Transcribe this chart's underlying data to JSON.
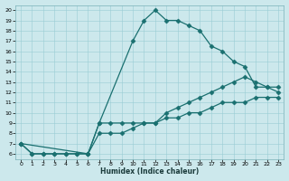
{
  "xlabel": "Humidex (Indice chaleur)",
  "bg_color": "#cce8ec",
  "grid_color": "#99cdd4",
  "line_color": "#1a7070",
  "xlim": [
    -0.5,
    23.5
  ],
  "ylim": [
    5.5,
    20.5
  ],
  "xticks": [
    0,
    1,
    2,
    3,
    4,
    5,
    6,
    7,
    8,
    9,
    10,
    11,
    12,
    13,
    14,
    15,
    16,
    17,
    18,
    19,
    20,
    21,
    22,
    23
  ],
  "yticks": [
    6,
    7,
    8,
    9,
    10,
    11,
    12,
    13,
    14,
    15,
    16,
    17,
    18,
    19,
    20
  ],
  "line1_x": [
    0,
    1,
    2,
    3,
    4,
    5,
    6,
    7,
    10,
    11,
    12,
    13,
    14,
    15,
    16,
    17,
    18,
    19,
    20,
    21,
    22,
    23
  ],
  "line1_y": [
    7,
    6,
    6,
    6,
    6,
    6,
    6,
    9,
    17,
    19,
    20,
    19,
    19,
    18.5,
    18,
    16.5,
    16,
    15,
    14.5,
    12.5,
    12.5,
    12.5
  ],
  "line2_x": [
    0,
    6,
    7,
    8,
    9,
    10,
    11,
    12,
    13,
    14,
    15,
    16,
    17,
    18,
    19,
    20,
    21,
    22,
    23
  ],
  "line2_y": [
    7,
    6,
    9,
    9,
    9,
    9,
    9,
    9,
    10,
    10.5,
    11,
    11.5,
    12,
    12.5,
    13,
    13.5,
    13,
    12.5,
    12
  ],
  "line3_x": [
    0,
    1,
    2,
    3,
    4,
    5,
    6,
    7,
    8,
    9,
    10,
    11,
    12,
    13,
    14,
    15,
    16,
    17,
    18,
    19,
    20,
    21,
    22,
    23
  ],
  "line3_y": [
    7,
    6,
    6,
    6,
    6,
    6,
    6,
    8,
    8,
    8,
    8.5,
    9,
    9,
    9.5,
    9.5,
    10,
    10,
    10.5,
    11,
    11,
    11,
    11.5,
    11.5,
    11.5
  ]
}
